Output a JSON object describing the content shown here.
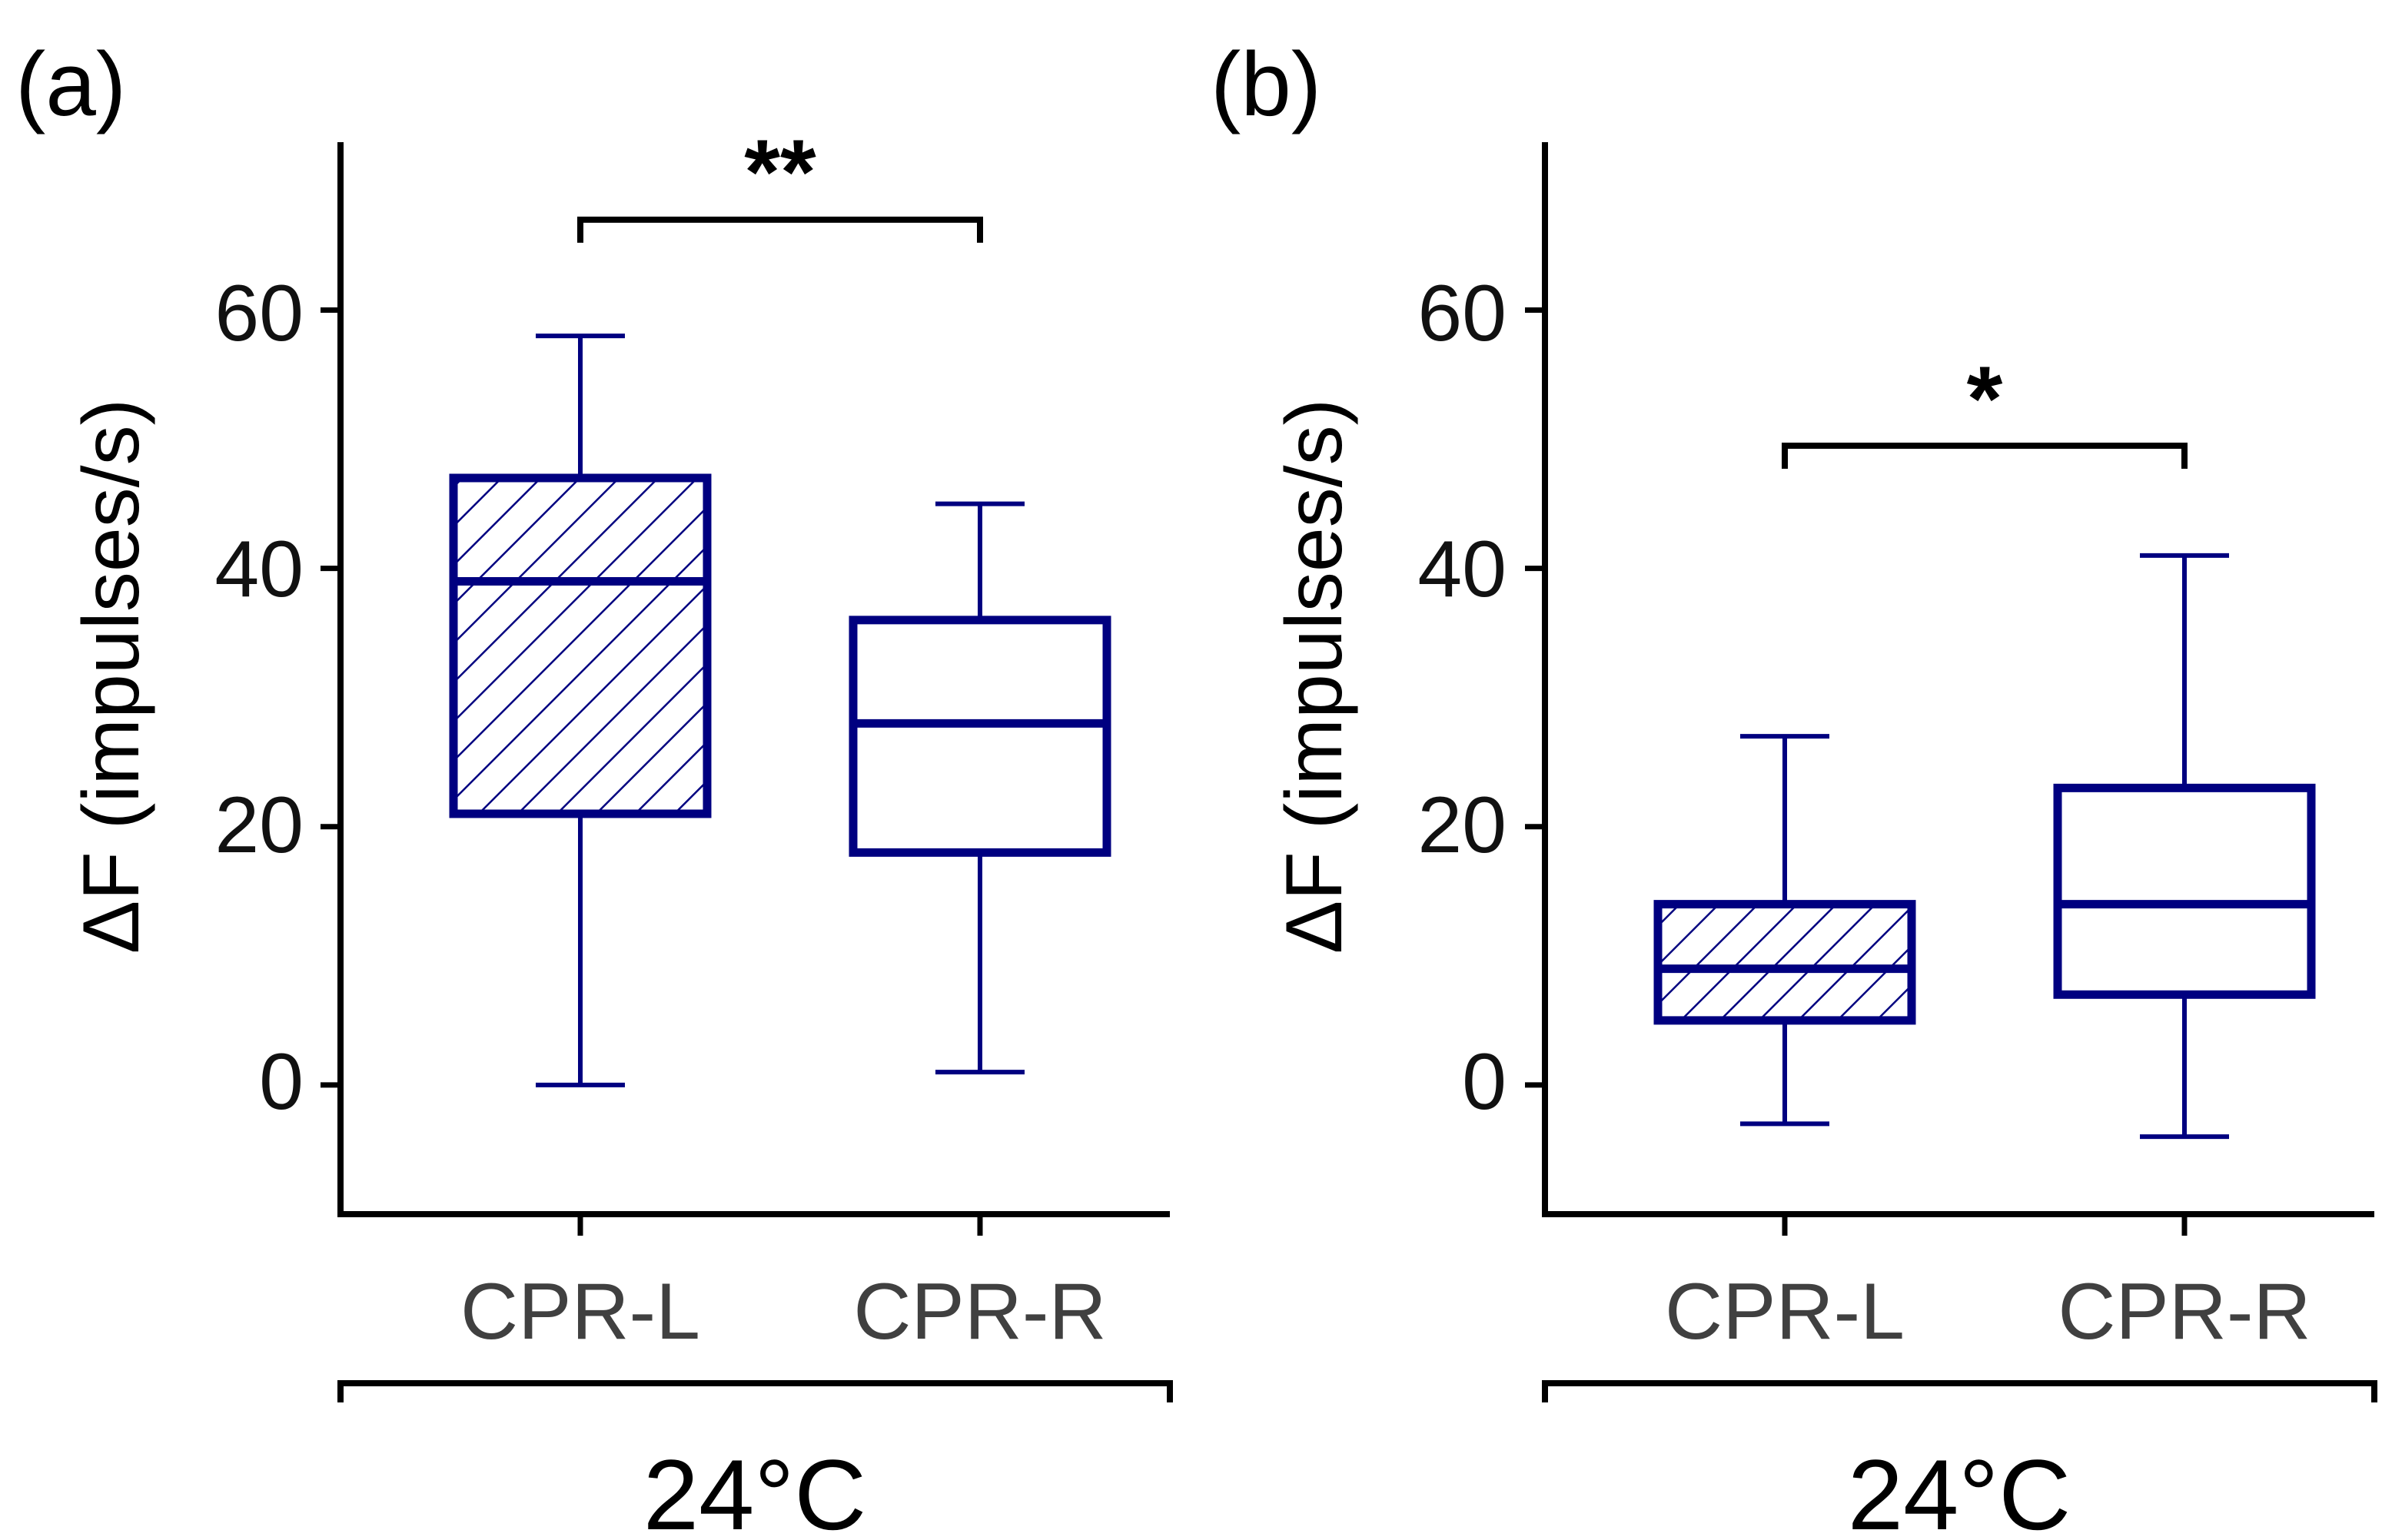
{
  "colors": {
    "box": "#000080",
    "axis": "#000000",
    "tick_text": "#404040"
  },
  "chart_data": [
    {
      "type": "box",
      "panel_label": "(a)",
      "ylabel": "ΔF  (impulses/s)",
      "ylim": [
        -10,
        73
      ],
      "yticks": [
        0,
        20,
        40,
        60
      ],
      "ytick_labels": [
        "0",
        "20",
        "40",
        "60"
      ],
      "categories": [
        "CPR-L",
        "CPR-R"
      ],
      "group_label": "24°C",
      "boxes": [
        {
          "name": "CPR-L",
          "whisker_low": 0,
          "q1": 21,
          "median": 39,
          "q3": 47,
          "whisker_high": 58,
          "hatched": true
        },
        {
          "name": "CPR-R",
          "whisker_low": 1,
          "q1": 18,
          "median": 28,
          "q3": 36,
          "whisker_high": 45,
          "hatched": false
        }
      ],
      "significance": {
        "from": 0,
        "to": 1,
        "y": 67,
        "label": "**"
      }
    },
    {
      "type": "box",
      "panel_label": "(b)",
      "ylabel": "ΔF  (impulses/s)",
      "ylim": [
        -10,
        73
      ],
      "yticks": [
        0,
        20,
        40,
        60
      ],
      "ytick_labels": [
        "0",
        "20",
        "40",
        "60"
      ],
      "categories": [
        "CPR-L",
        "CPR-R"
      ],
      "group_label": "24°C",
      "boxes": [
        {
          "name": "CPR-L",
          "whisker_low": -3,
          "q1": 5,
          "median": 9,
          "q3": 14,
          "whisker_high": 27,
          "hatched": true
        },
        {
          "name": "CPR-R",
          "whisker_low": -4,
          "q1": 7,
          "median": 14,
          "q3": 23,
          "whisker_high": 41,
          "hatched": false
        }
      ],
      "significance": {
        "from": 0,
        "to": 1,
        "y": 49.5,
        "label": "*"
      }
    }
  ]
}
